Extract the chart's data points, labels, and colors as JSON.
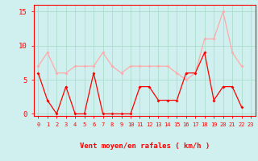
{
  "hours": [
    0,
    1,
    2,
    3,
    4,
    5,
    6,
    7,
    8,
    9,
    10,
    11,
    12,
    13,
    14,
    15,
    16,
    17,
    18,
    19,
    20,
    21,
    22,
    23
  ],
  "wind_avg": [
    6,
    2,
    0,
    4,
    0,
    0,
    6,
    0,
    0,
    0,
    0,
    4,
    4,
    2,
    2,
    2,
    6,
    6,
    9,
    2,
    4,
    4,
    1,
    null
  ],
  "wind_gust": [
    7,
    9,
    6,
    6,
    7,
    7,
    7,
    9,
    7,
    6,
    7,
    7,
    7,
    7,
    7,
    6,
    5,
    6,
    11,
    11,
    15,
    9,
    7,
    null
  ],
  "avg_color": "#ff0000",
  "gust_color": "#ffaaaa",
  "bg_color": "#cff0ee",
  "grid_color": "#aaddcc",
  "xlabel": "Vent moyen/en rafales ( km/h )",
  "ylim": [
    -0.3,
    16
  ],
  "yticks": [
    0,
    5,
    10,
    15
  ],
  "tick_color": "#ff0000",
  "xlabel_color": "#ff0000"
}
